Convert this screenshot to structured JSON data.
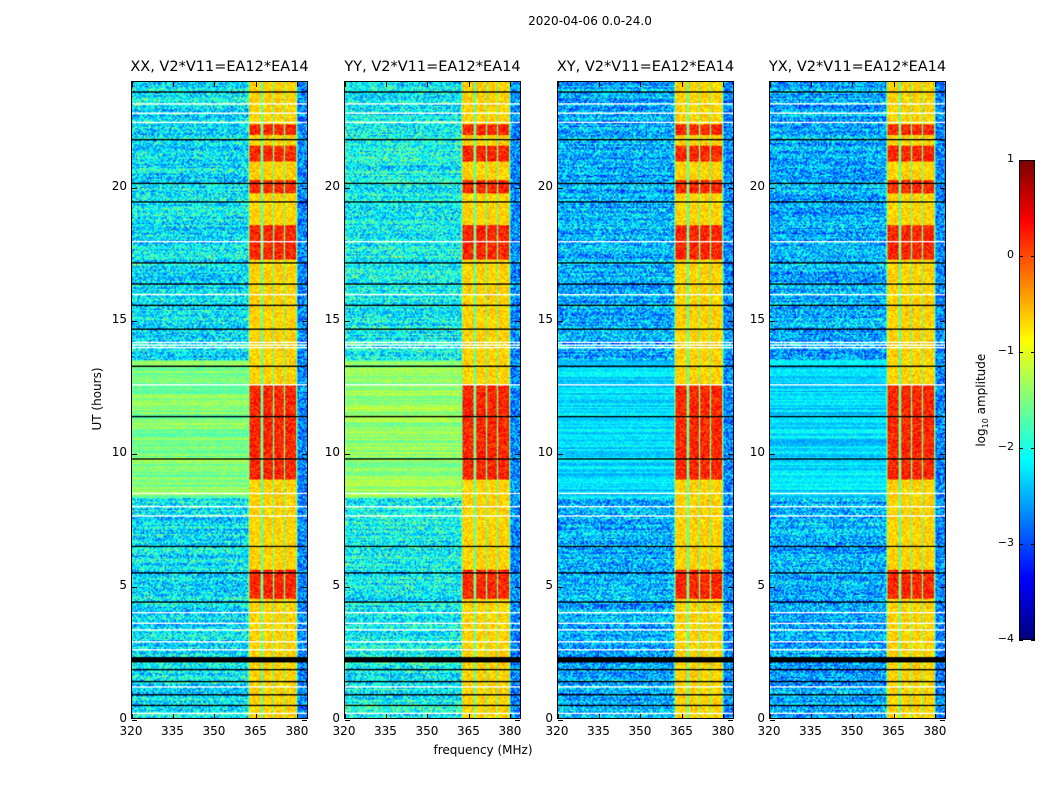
{
  "suptitle": "2020-04-06 0.0-24.0",
  "chart_data": {
    "type": "heatmap",
    "title": "2020-04-06 0.0-24.0",
    "xlabel": "frequency (MHz)",
    "ylabel": "UT (hours)",
    "xlim": [
      320,
      384
    ],
    "ylim": [
      0,
      24
    ],
    "xticks": [
      320,
      335,
      350,
      365,
      380
    ],
    "yticks": [
      0,
      5,
      10,
      15,
      20
    ],
    "colorbar": {
      "label_prefix": "log",
      "label_sub": "10",
      "label_suffix": " amplitude",
      "range": [
        -4,
        1
      ],
      "ticks": [
        1,
        0,
        -1,
        -2,
        -3,
        -4
      ],
      "tick_labels": [
        "1",
        "0",
        "−1",
        "−2",
        "−3",
        "−4"
      ],
      "colormap": "jet"
    },
    "panels": [
      {
        "title": "XX, V2*V11=EA12*EA14",
        "background_level": -2.2,
        "quiet_period_level": -1.5
      },
      {
        "title": "YY, V2*V11=EA12*EA14",
        "background_level": -2.1,
        "quiet_period_level": -1.4
      },
      {
        "title": "XY, V2*V11=EA12*EA14",
        "background_level": -2.5,
        "quiet_period_level": -2.3
      },
      {
        "title": "YX, V2*V11=EA12*EA14",
        "background_level": -2.5,
        "quiet_period_level": -2.3
      }
    ],
    "quiet_period_hours": [
      8.3,
      13.5
    ],
    "rfi_band_mhz": [
      362.5,
      380.5
    ],
    "rfi_band_level": -0.8,
    "rfi_subbands_mhz": [
      [
        363,
        367
      ],
      [
        368,
        371.3
      ],
      [
        372,
        375.3
      ],
      [
        376,
        380
      ]
    ],
    "rfi_strong_hours": [
      [
        4.5,
        5.6
      ],
      [
        9.0,
        12.6
      ],
      [
        17.3,
        18.6
      ],
      [
        19.8,
        20.3
      ],
      [
        21.0,
        21.6
      ],
      [
        22.0,
        22.4
      ]
    ],
    "rfi_strong_level": 0.2,
    "flagged_black_hours": [
      0.5,
      0.9,
      1.4,
      1.8,
      2.15,
      2.2,
      2.25,
      2.3,
      4.4,
      5.5,
      6.5,
      9.8,
      11.4,
      13.3,
      14.7,
      15.6,
      16.4,
      17.2,
      19.5,
      20.2,
      21.8,
      23.6
    ],
    "flagged_white_hours": [
      0.2,
      1.2,
      2.6,
      2.9,
      3.3,
      3.6,
      4.0,
      7.6,
      8.0,
      8.5,
      12.6,
      14.0,
      14.1,
      14.2,
      16.0,
      18.0,
      22.5,
      22.8,
      23.2
    ]
  }
}
